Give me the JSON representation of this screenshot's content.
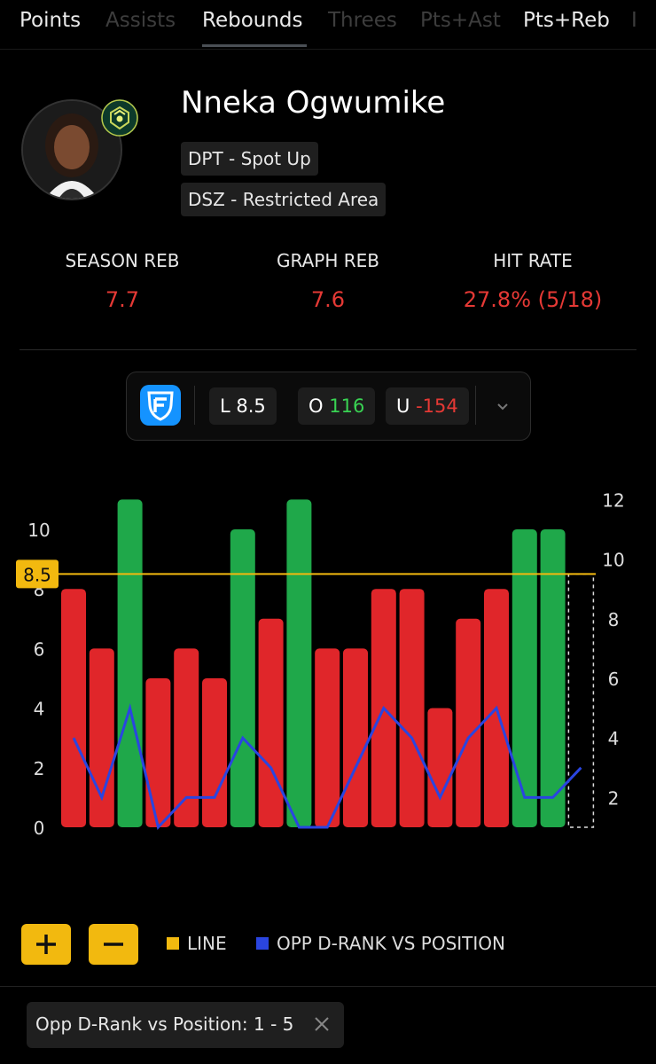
{
  "tabs": [
    "Points",
    "Assists",
    "Rebounds",
    "Threes",
    "Pts+Ast",
    "Pts+Reb",
    "I"
  ],
  "active_tab": "Rebounds",
  "player": {
    "name": "Nneka Ogwumike",
    "tags": [
      "DPT - Spot Up",
      "DSZ - Restricted Area"
    ]
  },
  "stats": [
    {
      "label": "SEASON REB",
      "value": "7.7"
    },
    {
      "label": "GRAPH REB",
      "value": "7.6"
    },
    {
      "label": "HIT RATE",
      "value": "27.8% (5/18)"
    }
  ],
  "odds": {
    "line_prefix": "L",
    "line_value": "8.5",
    "over_prefix": "O",
    "over_value": "116",
    "under_prefix": "U",
    "under_value": "-154"
  },
  "colors": {
    "hit": "#1fa84a",
    "miss": "#e0262a",
    "line": "#f2b90f",
    "rank": "#2a45e0",
    "accent_red": "#e53935",
    "accent_green": "#39d353"
  },
  "chart_data": {
    "type": "bar",
    "line_value": 8.5,
    "line_label": "8.5",
    "values": [
      8,
      6,
      11,
      5,
      6,
      5,
      10,
      7,
      11,
      6,
      6,
      8,
      8,
      4,
      7,
      8,
      10,
      10
    ],
    "hits": [
      false,
      false,
      true,
      false,
      false,
      false,
      true,
      false,
      true,
      false,
      false,
      false,
      false,
      false,
      false,
      false,
      true,
      true
    ],
    "ylim_left": [
      0,
      11
    ],
    "yticks_left": [
      0,
      2,
      4,
      6,
      8,
      10
    ],
    "series": [
      {
        "name": "OPP D-RANK VS POSITION",
        "values": [
          4,
          2,
          5,
          1,
          2,
          2,
          4,
          3,
          1,
          1,
          3,
          5,
          4,
          2,
          4,
          5,
          2,
          2,
          3
        ]
      }
    ],
    "yticks_right": [
      2,
      4,
      6,
      8,
      10,
      12
    ],
    "placeholder_bar": true
  },
  "controls": {
    "plus_label": "+",
    "minus_label": "−"
  },
  "legend": [
    {
      "label": "LINE",
      "color": "#f2b90f"
    },
    {
      "label": "OPP D-RANK VS POSITION",
      "color": "#2a45e0"
    }
  ],
  "filter": {
    "label": "Opp D-Rank vs Position: 1 - 5"
  }
}
